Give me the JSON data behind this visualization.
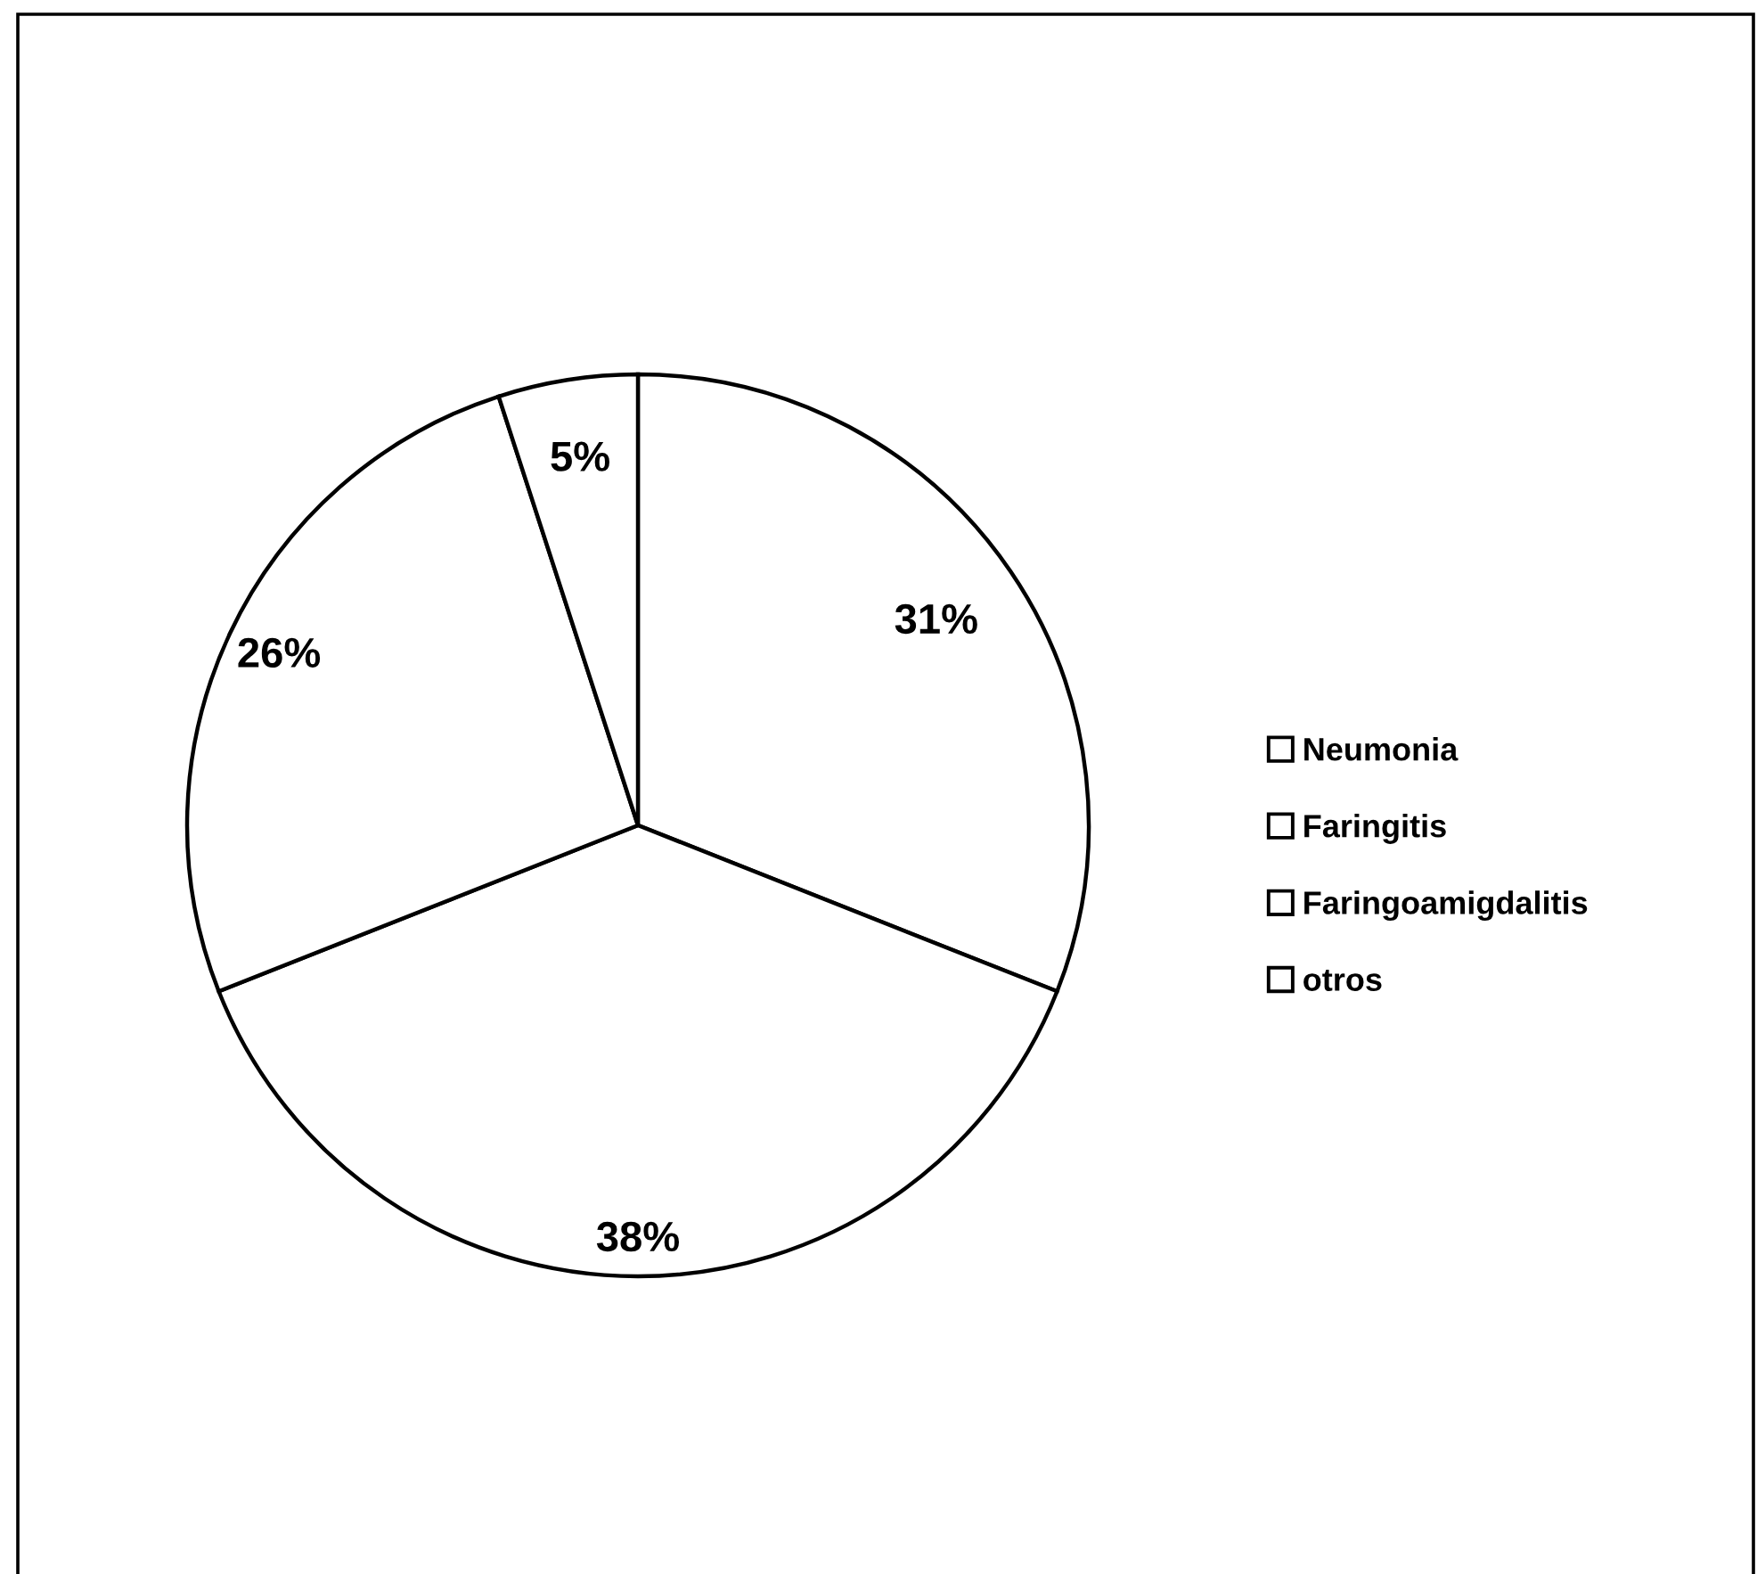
{
  "chart_data": {
    "type": "pie",
    "categories": [
      "Neumonia",
      "Faringitis",
      "Faringoamigdalitis",
      "otros"
    ],
    "values": [
      31,
      38,
      26,
      5
    ],
    "colors": [
      "#ffffff",
      "#ffffff",
      "#ffffff",
      "#ffffff"
    ],
    "value_labels": [
      "31%",
      "38%",
      "26%",
      "5%"
    ],
    "legend": "right"
  }
}
